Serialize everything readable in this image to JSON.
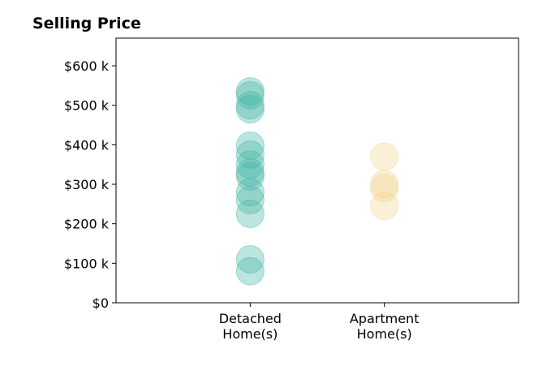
{
  "chart_data": {
    "type": "scatter",
    "title": "Selling Price",
    "xlabel": "",
    "ylabel": "",
    "categories": [
      [
        "Detached",
        "Home(s)"
      ],
      [
        "Apartment",
        "Home(s)"
      ]
    ],
    "yticks": [
      0,
      100000,
      200000,
      300000,
      400000,
      500000,
      600000
    ],
    "ytick_labels": [
      "$0",
      "$100 k",
      "$200 k",
      "$300 k",
      "$400 k",
      "$500 k",
      "$600 k"
    ],
    "ylim": [
      0,
      670000
    ],
    "xlim": [
      -1,
      2
    ],
    "grid": false,
    "series": [
      {
        "category_index": 0,
        "color": "#43b5a4",
        "values": [
          535000,
          525000,
          500000,
          490000,
          398000,
          375000,
          350000,
          330000,
          320000,
          280000,
          260000,
          225000,
          110000,
          80000
        ]
      },
      {
        "category_index": 1,
        "color": "#f0d48c",
        "values": [
          370000,
          300000,
          290000,
          245000
        ]
      }
    ]
  }
}
